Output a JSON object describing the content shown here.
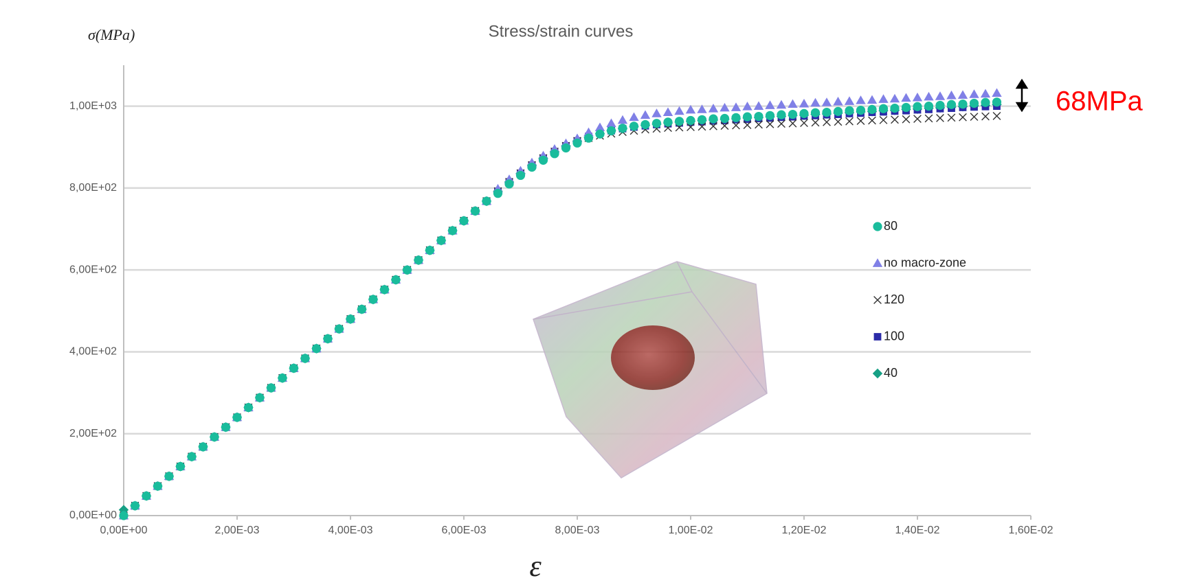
{
  "chart_data": {
    "type": "scatter",
    "title": "Stress/strain curves",
    "y_label": "σ(MPa)",
    "x_label": "ε",
    "annotation": "68MPa",
    "annotation_color": "#ff0000",
    "xlim": [
      0,
      0.016
    ],
    "ylim": [
      0,
      1100
    ],
    "grid": true,
    "xticks": [
      {
        "value": 0,
        "label": "0,00E+00"
      },
      {
        "value": 0.002,
        "label": "2,00E-03"
      },
      {
        "value": 0.004,
        "label": "4,00E-03"
      },
      {
        "value": 0.006,
        "label": "6,00E-03"
      },
      {
        "value": 0.008,
        "label": "8,00E-03"
      },
      {
        "value": 0.01,
        "label": "1,00E-02"
      },
      {
        "value": 0.012,
        "label": "1,20E-02"
      },
      {
        "value": 0.014,
        "label": "1,40E-02"
      },
      {
        "value": 0.016,
        "label": "1,60E-02"
      }
    ],
    "yticks": [
      {
        "value": 0,
        "label": "0,00E+00"
      },
      {
        "value": 200,
        "label": "2,00E+02"
      },
      {
        "value": 400,
        "label": "4,00E+02"
      },
      {
        "value": 600,
        "label": "6,00E+02"
      },
      {
        "value": 800,
        "label": "8,00E+02"
      },
      {
        "value": 1000,
        "label": "1,00E+03"
      }
    ],
    "x": [
      0,
      0.0002,
      0.0004,
      0.0006,
      0.0008,
      0.001,
      0.0012,
      0.0014,
      0.0016,
      0.0018,
      0.002,
      0.0022,
      0.0024,
      0.0026,
      0.0028,
      0.003,
      0.0032,
      0.0034,
      0.0036,
      0.0038,
      0.004,
      0.0042,
      0.0044,
      0.0046,
      0.0048,
      0.005,
      0.0052,
      0.0054,
      0.0056,
      0.0058,
      0.006,
      0.0062,
      0.0064,
      0.0066,
      0.0068,
      0.007,
      0.0072,
      0.0074,
      0.0076,
      0.0078,
      0.008,
      0.0082,
      0.0084,
      0.0086,
      0.0088,
      0.009,
      0.0092,
      0.0094,
      0.0096,
      0.0098,
      0.01,
      0.0102,
      0.0104,
      0.0106,
      0.0108,
      0.011,
      0.0112,
      0.0114,
      0.0116,
      0.0118,
      0.012,
      0.0122,
      0.0124,
      0.0126,
      0.0128,
      0.013,
      0.0132,
      0.0134,
      0.0136,
      0.0138,
      0.014,
      0.0142,
      0.0144,
      0.0146,
      0.0148,
      0.015,
      0.0152,
      0.0154
    ],
    "series": [
      {
        "name": "80",
        "marker": "circle",
        "color": "#1abc9c",
        "values": [
          0,
          24,
          48,
          72,
          96,
          120,
          144,
          168,
          192,
          216,
          240,
          264,
          288,
          312,
          336,
          360,
          384,
          408,
          432,
          456,
          480,
          504,
          528,
          552,
          576,
          600,
          624,
          648,
          672,
          696,
          720,
          744,
          768,
          787,
          810,
          831,
          851,
          868,
          884,
          898,
          910,
          922,
          932,
          940,
          946,
          951,
          955,
          958,
          961,
          963,
          965,
          967,
          969,
          970,
          972,
          974,
          975,
          977,
          979,
          980,
          982,
          984,
          985,
          987,
          989,
          990,
          992,
          994,
          995,
          997,
          999,
          1000,
          1002,
          1004,
          1005,
          1007,
          1009,
          1010
        ]
      },
      {
        "name": "no macro-zone",
        "marker": "triangle",
        "color": "#8080e6",
        "values": [
          0,
          24,
          48,
          72,
          96,
          120,
          144,
          168,
          192,
          216,
          240,
          264,
          288,
          312,
          336,
          360,
          384,
          408,
          432,
          456,
          480,
          504,
          528,
          552,
          576,
          600,
          624,
          648,
          672,
          696,
          720,
          744,
          768,
          798,
          821,
          842,
          862,
          879,
          895,
          909,
          921,
          936,
          948,
          958,
          966,
          973,
          978,
          982,
          985,
          988,
          991,
          992,
          994,
          996,
          997,
          999,
          1000,
          1002,
          1003,
          1005,
          1006,
          1008,
          1009,
          1011,
          1012,
          1014,
          1015,
          1017,
          1018,
          1020,
          1021,
          1023,
          1024,
          1026,
          1027,
          1029,
          1030,
          1032
        ]
      },
      {
        "name": "120",
        "marker": "cross",
        "color": "#333333",
        "values": [
          0,
          24,
          48,
          72,
          96,
          120,
          144,
          168,
          192,
          216,
          240,
          264,
          288,
          312,
          336,
          360,
          384,
          408,
          432,
          456,
          480,
          504,
          528,
          552,
          576,
          600,
          624,
          648,
          672,
          696,
          720,
          744,
          768,
          792,
          815,
          836,
          856,
          873,
          889,
          903,
          915,
          922,
          928,
          933,
          937,
          940,
          943,
          945,
          947,
          948,
          949,
          950,
          951,
          952,
          953,
          954,
          955,
          956,
          957,
          958,
          959,
          960,
          961,
          962,
          963,
          964,
          965,
          966,
          967,
          968,
          969,
          970,
          971,
          972,
          973,
          974,
          975,
          976
        ]
      },
      {
        "name": "100",
        "marker": "square",
        "color": "#2b2ba8",
        "values": [
          0,
          24,
          48,
          72,
          96,
          120,
          144,
          168,
          192,
          216,
          240,
          264,
          288,
          312,
          336,
          360,
          384,
          408,
          432,
          456,
          480,
          504,
          528,
          552,
          576,
          600,
          624,
          648,
          672,
          696,
          720,
          744,
          768,
          792,
          815,
          836,
          856,
          873,
          889,
          903,
          915,
          926,
          934,
          940,
          945,
          949,
          952,
          955,
          957,
          959,
          961,
          962,
          964,
          965,
          967,
          968,
          970,
          971,
          973,
          974,
          976,
          977,
          979,
          980,
          982,
          983,
          985,
          986,
          988,
          989,
          991,
          992,
          994,
          995,
          997,
          998,
          999,
          1000
        ]
      },
      {
        "name": "40",
        "marker": "diamond",
        "color": "#16a085",
        "values": [
          14,
          24,
          48,
          72,
          96,
          120,
          144,
          168,
          192,
          216,
          240,
          264,
          288,
          312,
          336,
          360,
          384,
          408,
          432,
          456,
          480,
          504,
          528,
          552,
          576,
          600,
          624,
          648,
          672,
          696,
          720,
          744,
          768,
          792,
          815,
          836,
          856,
          873,
          889,
          903,
          915,
          924,
          933,
          940,
          945,
          950,
          953,
          956,
          959,
          961,
          963,
          965,
          966,
          968,
          969,
          971,
          972,
          974,
          975,
          977,
          978,
          980,
          981,
          983,
          984,
          986,
          987,
          989,
          990,
          992,
          993,
          995,
          996,
          998,
          999,
          1001,
          1002,
          1004
        ]
      }
    ]
  }
}
